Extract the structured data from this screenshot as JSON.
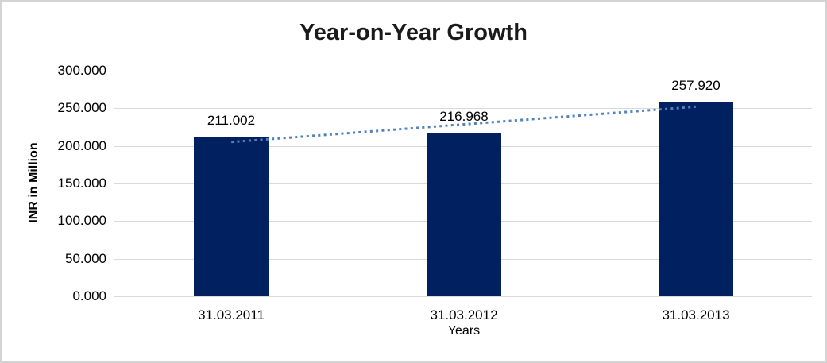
{
  "window": {
    "background": "#ffffff",
    "frame_border_color": "#d4d4d4"
  },
  "chart_data": {
    "type": "bar",
    "title": "Year-on-Year Growth",
    "categories": [
      "31.03.2011",
      "31.03.2012",
      "31.03.2013"
    ],
    "values": [
      211.002,
      216.968,
      257.92
    ],
    "data_labels": [
      "211.002",
      "216.968",
      "257.920"
    ],
    "xlabel": "Years",
    "ylabel": "INR in Million",
    "ylim": [
      0,
      300
    ],
    "ytick_step": 50,
    "ytick_labels": [
      "0.000",
      "50.000",
      "100.000",
      "150.000",
      "200.000",
      "250.000",
      "300.000"
    ],
    "grid": true,
    "legend": false,
    "trendline": {
      "style": "dotted",
      "fit": "linear",
      "color": "#4f81bd"
    },
    "colors": {
      "bar": "#002060",
      "gridline": "#d9d9d9",
      "text": "#000000",
      "title": "#1a1a1a"
    }
  }
}
